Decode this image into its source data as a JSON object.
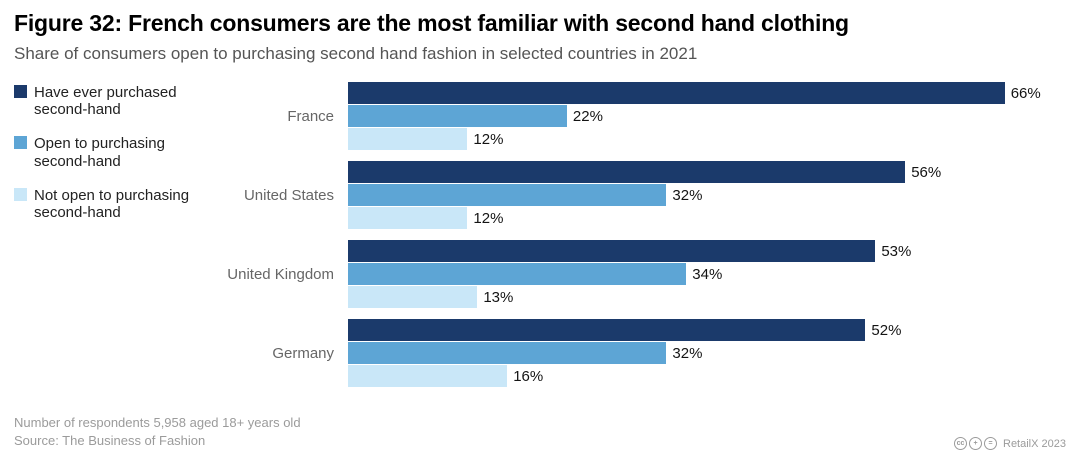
{
  "title": "Figure 32: French consumers are the most familiar with second hand clothing",
  "subtitle": "Share of consumers open to purchasing second hand fashion in selected countries in 2021",
  "chart_data": {
    "type": "bar",
    "orientation": "horizontal",
    "title": "Figure 32: French consumers are the most familiar with second hand clothing",
    "subtitle": "Share of consumers open to purchasing second hand fashion in selected countries in 2021",
    "categories": [
      "France",
      "United States",
      "United Kingdom",
      "Germany"
    ],
    "series": [
      {
        "name": "Have ever purchased second-hand",
        "color": "#1b3a6b",
        "values": [
          66,
          56,
          53,
          52
        ]
      },
      {
        "name": "Open to purchasing second-hand",
        "color": "#5da5d5",
        "values": [
          22,
          32,
          34,
          32
        ]
      },
      {
        "name": "Not open to purchasing second-hand",
        "color": "#c9e7f8",
        "values": [
          12,
          12,
          13,
          16
        ]
      }
    ],
    "value_suffix": "%",
    "xlim": [
      0,
      70
    ],
    "grid": false,
    "legend_position": "left",
    "data_labels": true
  },
  "footer": {
    "line1": "Number of respondents 5,958 aged 18+ years old",
    "line2": "Source: The Business of Fashion",
    "credit": "RetailX 2023",
    "license_icons": [
      "cc-icon",
      "attribution-icon",
      "no-derivatives-icon"
    ],
    "license_glyphs": [
      "cc",
      "+",
      "="
    ]
  }
}
